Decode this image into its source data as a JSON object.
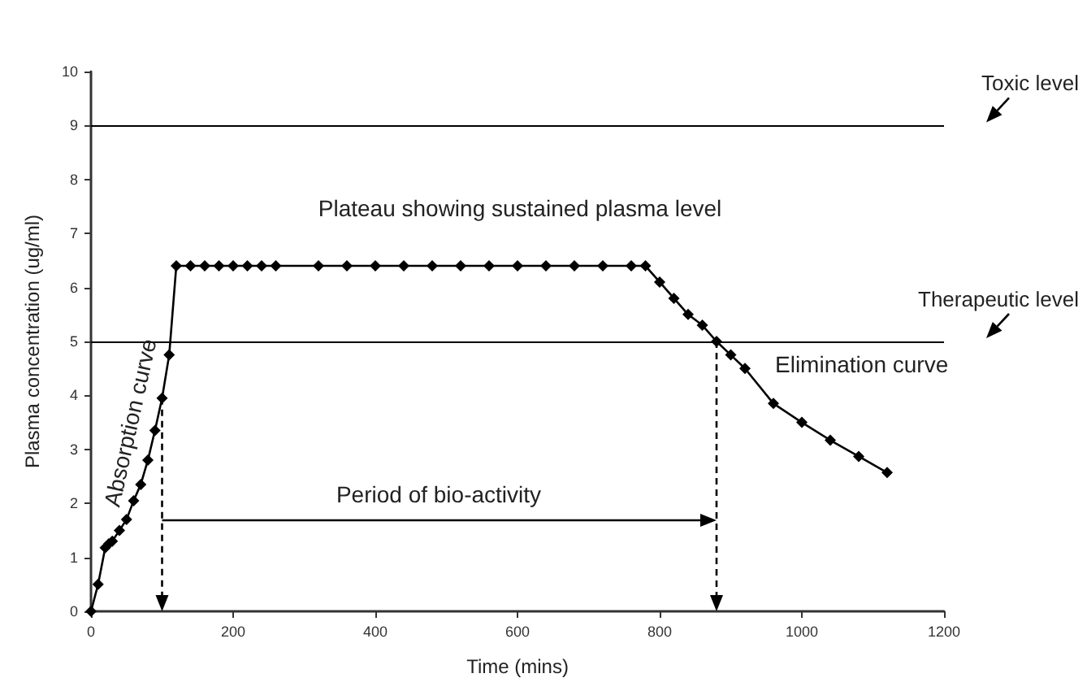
{
  "chart_data": {
    "type": "line",
    "xlabel": "Time (mins)",
    "ylabel": "Plasma concentration (ug/ml)",
    "x": [
      0,
      10,
      20,
      25,
      30,
      40,
      50,
      60,
      70,
      80,
      90,
      100,
      110,
      120,
      140,
      160,
      180,
      200,
      220,
      240,
      260,
      320,
      360,
      400,
      440,
      480,
      520,
      560,
      600,
      640,
      680,
      720,
      760,
      780,
      800,
      820,
      840,
      860,
      880,
      900,
      920,
      960,
      1000,
      1040,
      1080,
      1120
    ],
    "values": [
      0,
      0.5,
      1.18,
      1.25,
      1.3,
      1.5,
      1.7,
      2.05,
      2.35,
      2.8,
      3.35,
      3.95,
      4.75,
      6.4,
      6.4,
      6.4,
      6.4,
      6.4,
      6.4,
      6.4,
      6.4,
      6.4,
      6.4,
      6.4,
      6.4,
      6.4,
      6.4,
      6.4,
      6.4,
      6.4,
      6.4,
      6.4,
      6.4,
      6.4,
      6.1,
      5.8,
      5.5,
      5.3,
      5.0,
      4.75,
      4.5,
      3.85,
      3.5,
      3.17,
      2.87,
      2.57
    ],
    "color": "#000000",
    "marker": "diamond",
    "line_style": "solid",
    "xlim": [
      0,
      1200
    ],
    "xticks": [
      0,
      200,
      400,
      600,
      800,
      1000,
      1200
    ],
    "ylim": [
      0,
      10
    ],
    "yticks": [
      0,
      1,
      2,
      3,
      4,
      5,
      6,
      7,
      8,
      9,
      10
    ],
    "grid": false,
    "ref_lines": [
      {
        "axis": "y",
        "value": 9,
        "label": "Toxic level"
      },
      {
        "axis": "y",
        "value": 5,
        "label": "Therapeutic level"
      },
      {
        "axis": "x",
        "value": 100,
        "label": null,
        "line_style": "dashed"
      },
      {
        "axis": "x",
        "value": 880,
        "label": null,
        "line_style": "dashed"
      }
    ],
    "annotations": [
      "Plateau showing sustained plasma level",
      "Absorption curve",
      "Elimination curve",
      "Period of bio-activity"
    ]
  }
}
